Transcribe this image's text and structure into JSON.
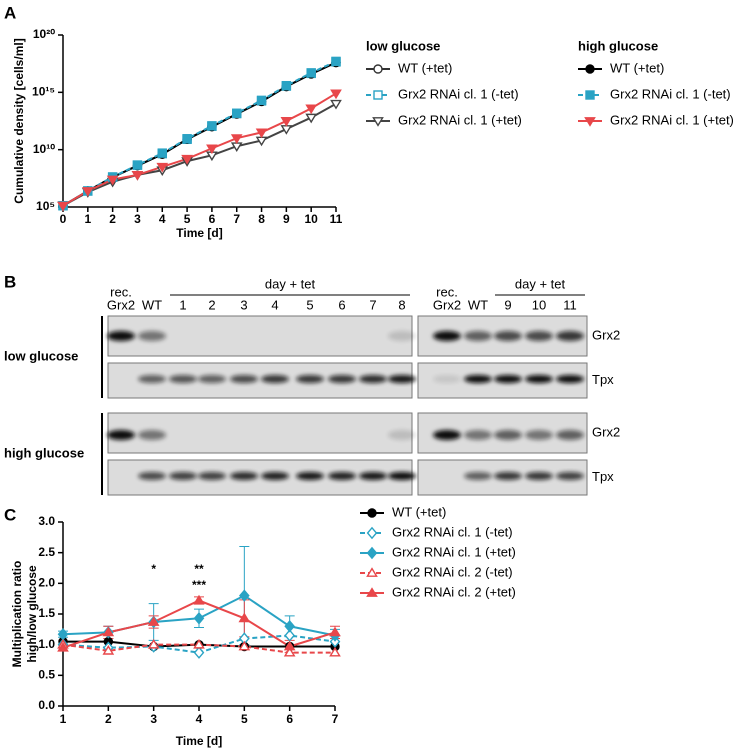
{
  "panel_labels": [
    "A",
    "B",
    "C"
  ],
  "chart_data": [
    {
      "type": "line",
      "ylog": true,
      "xlabel": "Time [d]",
      "ylabel": [
        "Cumulative density [cells/ml]"
      ],
      "x": [
        0,
        1,
        2,
        3,
        4,
        5,
        6,
        7,
        8,
        9,
        10,
        11
      ],
      "xlim": [
        0,
        11
      ],
      "xticks": [
        0,
        1,
        2,
        3,
        4,
        5,
        6,
        7,
        8,
        9,
        10,
        11
      ],
      "ylim": [
        100000.0,
        1e+20
      ],
      "yticks": [
        {
          "value": 100000.0,
          "label": "10⁵"
        },
        {
          "value": 10000000000.0,
          "label": "10¹⁰"
        },
        {
          "value": 1000000000000000.0,
          "label": "10¹⁵"
        },
        {
          "value": 1e+20,
          "label": "10²⁰"
        }
      ],
      "legend_groups": [
        "low glucose",
        "high glucose"
      ],
      "series": [
        {
          "name": "WT (+tet)",
          "group": 0,
          "color": "#333333",
          "marker": "circle",
          "filled": false,
          "dashed": false,
          "values": [
            130000.0,
            2500000.0,
            40000000.0,
            400000000.0,
            4000000000.0,
            80000000000.0,
            1000000000000.0,
            13000000000000.0,
            160000000000000.0,
            3200000000000000.0,
            4e+16,
            4e+17
          ]
        },
        {
          "name": "Grx2 RNAi cl. 1 (-tet)",
          "group": 0,
          "color": "#2aa3c4",
          "marker": "square",
          "filled": false,
          "dashed": true,
          "values": [
            130000.0,
            2500000.0,
            40000000.0,
            450000000.0,
            4500000000.0,
            80000000000.0,
            1100000000000.0,
            14000000000000.0,
            180000000000000.0,
            3500000000000000.0,
            4.5e+16,
            4.5e+17
          ]
        },
        {
          "name": "Grx2 RNAi cl. 1 (+tet)",
          "group": 0,
          "color": "#444444",
          "marker": "triangle-down",
          "filled": false,
          "dashed": false,
          "values": [
            130000.0,
            2000000.0,
            16000000.0,
            63000000.0,
            160000000.0,
            1000000000.0,
            3200000000.0,
            20000000000.0,
            63000000000.0,
            630000000000.0,
            6300000000000.0,
            100000000000000.0
          ]
        },
        {
          "name": "WT (+tet)",
          "group": 1,
          "color": "#000000",
          "marker": "circle",
          "filled": true,
          "dashed": false,
          "values": [
            130000.0,
            2500000.0,
            40000000.0,
            400000000.0,
            4000000000.0,
            80000000000.0,
            1000000000000.0,
            13000000000000.0,
            160000000000000.0,
            3200000000000000.0,
            4e+16,
            4e+17
          ]
        },
        {
          "name": "Grx2 RNAi cl. 1 (-tet)",
          "group": 1,
          "color": "#2aa3c4",
          "marker": "square",
          "filled": true,
          "dashed": true,
          "values": [
            130000.0,
            2500000.0,
            42000000.0,
            450000000.0,
            5000000000.0,
            90000000000.0,
            1200000000000.0,
            15000000000000.0,
            200000000000000.0,
            3800000000000000.0,
            5e+16,
            5e+17
          ]
        },
        {
          "name": "Grx2 RNAi cl. 1 (+tet)",
          "group": 1,
          "color": "#e8474a",
          "marker": "triangle-down",
          "filled": true,
          "dashed": false,
          "values": [
            130000.0,
            2500000.0,
            25000000.0,
            63000000.0,
            320000000.0,
            1600000000.0,
            13000000000.0,
            100000000000.0,
            320000000000.0,
            3200000000000.0,
            40000000000000.0,
            800000000000000.0
          ]
        }
      ]
    },
    {
      "type": "line",
      "ylog": false,
      "xlabel": "Time [d]",
      "ylabel": [
        "Multiplication ratio",
        "high/low glucose"
      ],
      "x": [
        1,
        2,
        3,
        4,
        5,
        6,
        7
      ],
      "xlim": [
        1,
        7
      ],
      "xticks": [
        1,
        2,
        3,
        4,
        5,
        6,
        7
      ],
      "ylim": [
        0,
        3
      ],
      "yticks": [
        {
          "value": 0,
          "label": "0.0"
        },
        0.5,
        {
          "value": 1,
          "label": "1.0"
        },
        1.5,
        {
          "value": 2,
          "label": "2.0"
        },
        2.5,
        {
          "value": 3,
          "label": "3.0"
        }
      ],
      "series": [
        {
          "name": "WT (+tet)",
          "color": "#000000",
          "marker": "circle",
          "filled": true,
          "dashed": false,
          "values": [
            1.05,
            1.05,
            0.97,
            1.0,
            0.97,
            0.97,
            0.97
          ]
        },
        {
          "name": "Grx2 RNAi cl. 1 (-tet)",
          "color": "#2aa3c4",
          "marker": "diamond",
          "filled": false,
          "dashed": true,
          "values": [
            1.0,
            0.95,
            0.97,
            0.87,
            1.1,
            1.15,
            1.05
          ]
        },
        {
          "name": "Grx2 RNAi cl. 1 (+tet)",
          "color": "#2aa3c4",
          "marker": "diamond",
          "filled": true,
          "dashed": false,
          "values": [
            1.17,
            1.2,
            1.37,
            1.43,
            1.8,
            1.3,
            1.15
          ],
          "errors": [
            0.05,
            0.1,
            0.3,
            0.15,
            0.8,
            0.17,
            0.1
          ]
        },
        {
          "name": "Grx2 RNAi cl. 2 (-tet)",
          "color": "#e8474a",
          "marker": "triangle-up",
          "filled": false,
          "dashed": true,
          "values": [
            1.0,
            0.9,
            1.0,
            1.0,
            0.97,
            0.87,
            0.87
          ]
        },
        {
          "name": "Grx2 RNAi cl. 2 (+tet)",
          "color": "#e8474a",
          "marker": "triangle-up",
          "filled": true,
          "dashed": false,
          "values": [
            0.95,
            1.2,
            1.37,
            1.72,
            1.43,
            0.97,
            1.2
          ],
          "errors": [
            0.05,
            0.1,
            0.1,
            0.06,
            0.3,
            0.1,
            0.1
          ]
        }
      ],
      "annotations": [
        {
          "text": "*",
          "x": 3
        },
        {
          "text": "**",
          "x": 4
        },
        {
          "text": "***",
          "x": 4
        }
      ]
    }
  ],
  "blot": {
    "conditions": [
      "low glucose",
      "high glucose"
    ],
    "proteins": [
      "Grx2",
      "Tpx"
    ],
    "left": {
      "rec": "rec.",
      "group": "day + tet",
      "lanes": [
        "Grx2",
        "WT",
        "1",
        "2",
        "3",
        "4",
        "5",
        "6",
        "7",
        "8"
      ]
    },
    "right": {
      "rec": "rec.",
      "group": "day + tet",
      "lanes": [
        "Grx2",
        "WT",
        "9",
        "10",
        "11"
      ]
    }
  }
}
